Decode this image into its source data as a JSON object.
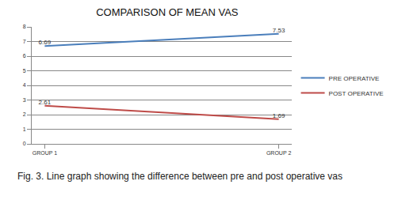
{
  "chart_data": {
    "type": "line",
    "title": "COMPARISON OF MEAN VAS",
    "caption": "Fig. 3. Line graph showing the difference between pre and post operative vas",
    "categories": [
      "GROUP 1",
      "GROUP 2"
    ],
    "series": [
      {
        "name": "PRE OPERATIVE",
        "color": "#4a7ebb",
        "values": [
          6.69,
          7.53
        ]
      },
      {
        "name": "POST OPERATIVE",
        "color": "#be4b48",
        "values": [
          2.61,
          1.69
        ]
      }
    ],
    "ylim": [
      0,
      8
    ],
    "yticks": [
      0,
      1,
      2,
      3,
      4,
      5,
      6,
      7,
      8
    ],
    "grid": true,
    "legend": "right",
    "data_labels": true
  }
}
